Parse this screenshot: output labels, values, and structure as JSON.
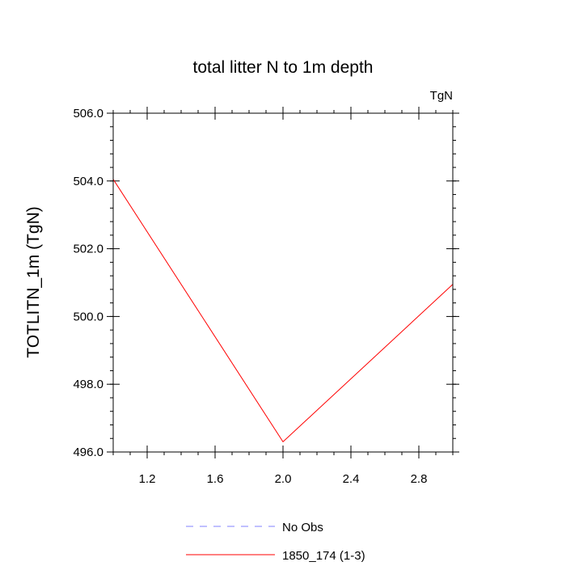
{
  "chart_data": {
    "type": "line",
    "title": "total litter N to 1m depth",
    "units_label": "TgN",
    "ylabel": "TOTLITN_1m  (TgN)",
    "xlabel": "",
    "xlim": [
      1.0,
      3.0
    ],
    "ylim": [
      496.0,
      506.0
    ],
    "x_ticks": [
      1.2,
      1.6,
      2.0,
      2.4,
      2.8
    ],
    "x_tick_labels": [
      "1.2",
      "1.6",
      "2.0",
      "2.4",
      "2.8"
    ],
    "y_ticks": [
      496.0,
      498.0,
      500.0,
      502.0,
      504.0,
      506.0
    ],
    "y_tick_labels": [
      "496.0",
      "498.0",
      "500.0",
      "502.0",
      "504.0",
      "506.0"
    ],
    "grid": false,
    "legend_position": "bottom-center",
    "series": [
      {
        "name": "No Obs",
        "x": [],
        "y": [],
        "color": "#8080ff",
        "style": "dashed"
      },
      {
        "name": "1850_174 (1-3)",
        "x": [
          1.0,
          2.0,
          3.0
        ],
        "y": [
          504.05,
          496.3,
          500.95
        ],
        "color": "#ff0000",
        "style": "solid"
      }
    ]
  }
}
